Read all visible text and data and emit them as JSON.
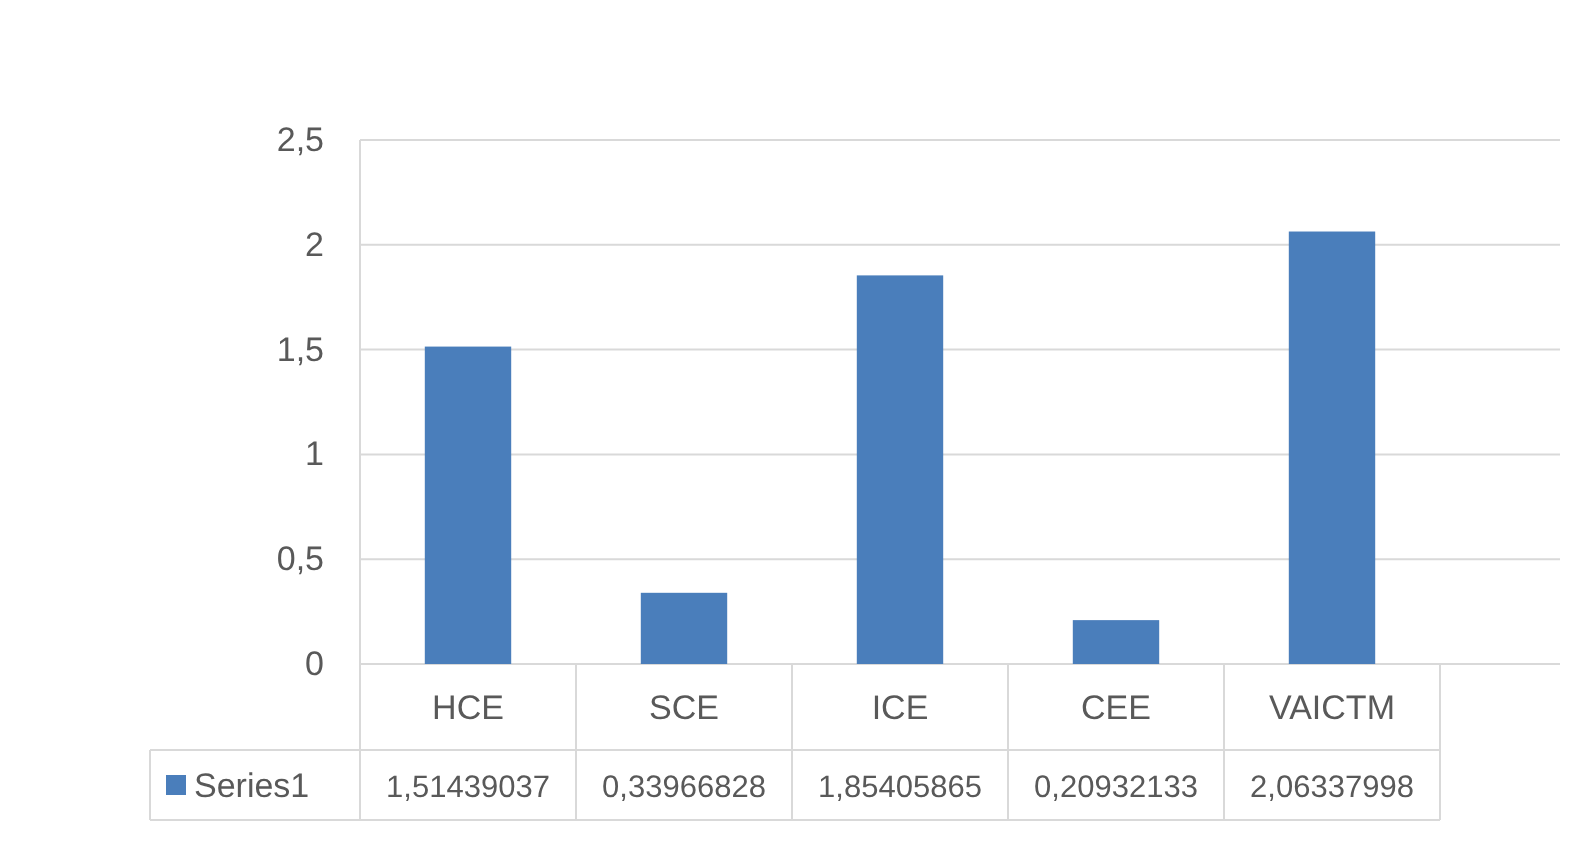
{
  "chart_data": {
    "type": "bar",
    "categories": [
      "HCE",
      "SCE",
      "ICE",
      "CEE",
      "VAICTM"
    ],
    "series": [
      {
        "name": "Series1",
        "color": "#4a7ebb",
        "values": [
          1.51439037,
          0.33966828,
          1.85405865,
          0.20932133,
          2.06337998
        ],
        "value_labels": [
          "1,51439037",
          "0,33966828",
          "1,85405865",
          "0,20932133",
          "2,06337998"
        ]
      }
    ],
    "ylim": [
      0,
      2.5
    ],
    "yticks": [
      {
        "value": 0,
        "label": "0"
      },
      {
        "value": 0.5,
        "label": "0,5"
      },
      {
        "value": 1,
        "label": "1"
      },
      {
        "value": 1.5,
        "label": "1,5"
      },
      {
        "value": 2,
        "label": "2"
      },
      {
        "value": 2.5,
        "label": "2,5"
      }
    ],
    "grid": "y",
    "legend": "bottom"
  }
}
